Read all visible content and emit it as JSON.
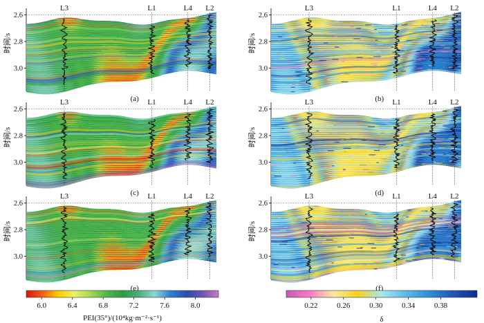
{
  "figure": {
    "panels": [
      {
        "id": "a",
        "label": "(a)",
        "colormap": "pei",
        "wells": [
          "L3",
          "L1",
          "L4",
          "L2"
        ]
      },
      {
        "id": "b",
        "label": "(b)",
        "colormap": "delta",
        "wells": [
          "L3",
          "L1",
          "L4",
          "L2"
        ]
      },
      {
        "id": "c",
        "label": "(c)",
        "colormap": "pei",
        "wells": [
          "L3",
          "L1",
          "L4",
          "L2"
        ]
      },
      {
        "id": "d",
        "label": "(d)",
        "colormap": "delta",
        "wells": [
          "L3",
          "L1",
          "L4",
          "L2"
        ]
      },
      {
        "id": "e",
        "label": "(e)",
        "colormap": "pei",
        "wells": [
          "L3",
          "L1",
          "L4",
          "L2"
        ]
      },
      {
        "id": "f",
        "label": "(f)",
        "colormap": "delta",
        "wells": [
          "L3",
          "L1",
          "L4",
          "L2"
        ]
      }
    ],
    "y_axis": {
      "label": "时间/s",
      "ticks": [
        "2.6",
        "2.8",
        "3.0"
      ]
    },
    "colorbar_left": {
      "ticks": [
        "6.0",
        "6.4",
        "6.8",
        "7.2",
        "7.6",
        "8.0"
      ],
      "title": "PEI(35°)/(10⁴kg·m⁻²·s⁻¹)",
      "colors": [
        "#e01010",
        "#f26018",
        "#ffcc00",
        "#e9f06a",
        "#a7d84c",
        "#4fb84c",
        "#2e9d42",
        "#48b07a",
        "#8ed8d2",
        "#2e7fd0",
        "#2a4fb0",
        "#6e55b6",
        "#c47cc8"
      ]
    },
    "colorbar_right": {
      "ticks": [
        "0.22",
        "0.26",
        "0.30",
        "0.34",
        "0.38"
      ],
      "title": "δ",
      "colors": [
        "#c45bb5",
        "#ff7ac8",
        "#f8eaa0",
        "#f4d21e",
        "#a8e8ee",
        "#5fb8ea",
        "#2b8fd8",
        "#1e58b8",
        "#112a8a"
      ]
    }
  },
  "chart_data": [
    {
      "type": "heatmap",
      "panel": "(a)",
      "title": "",
      "xlabel": "",
      "ylabel": "时间/s",
      "ylim": [
        3.15,
        2.6
      ],
      "yticks": [
        2.6,
        2.8,
        3.0
      ],
      "wells": [
        "L3",
        "L1",
        "L4",
        "L2"
      ],
      "colorbar_range": [
        5.8,
        8.3
      ],
      "colorbar_label": "PEI(35°)/(10⁴kg·m⁻²·s⁻¹)"
    },
    {
      "type": "heatmap",
      "panel": "(b)",
      "title": "",
      "xlabel": "",
      "ylabel": "时间/s",
      "ylim": [
        3.15,
        2.6
      ],
      "yticks": [
        2.6,
        2.8,
        3.0
      ],
      "wells": [
        "L3",
        "L1",
        "L4",
        "L2"
      ],
      "colorbar_range": [
        0.19,
        0.41
      ],
      "colorbar_label": "δ"
    },
    {
      "type": "heatmap",
      "panel": "(c)",
      "title": "",
      "xlabel": "",
      "ylabel": "时间/s",
      "ylim": [
        3.15,
        2.6
      ],
      "yticks": [
        2.6,
        2.8,
        3.0
      ],
      "wells": [
        "L3",
        "L1",
        "L4",
        "L2"
      ],
      "colorbar_range": [
        5.8,
        8.3
      ],
      "colorbar_label": "PEI(35°)/(10⁴kg·m⁻²·s⁻¹)"
    },
    {
      "type": "heatmap",
      "panel": "(d)",
      "title": "",
      "xlabel": "",
      "ylabel": "时间/s",
      "ylim": [
        3.15,
        2.6
      ],
      "yticks": [
        2.6,
        2.8,
        3.0
      ],
      "wells": [
        "L3",
        "L1",
        "L4",
        "L2"
      ],
      "colorbar_range": [
        0.19,
        0.41
      ],
      "colorbar_label": "δ"
    },
    {
      "type": "heatmap",
      "panel": "(e)",
      "title": "",
      "xlabel": "",
      "ylabel": "时间/s",
      "ylim": [
        3.15,
        2.6
      ],
      "yticks": [
        2.6,
        2.8,
        3.0
      ],
      "wells": [
        "L3",
        "L1",
        "L4",
        "L2"
      ],
      "colorbar_range": [
        5.8,
        8.3
      ],
      "colorbar_label": "PEI(35°)/(10⁴kg·m⁻²·s⁻¹)"
    },
    {
      "type": "heatmap",
      "panel": "(f)",
      "title": "",
      "xlabel": "",
      "ylabel": "时间/s",
      "ylim": [
        3.15,
        2.6
      ],
      "yticks": [
        2.6,
        2.8,
        3.0
      ],
      "wells": [
        "L3",
        "L1",
        "L4",
        "L2"
      ],
      "colorbar_range": [
        0.19,
        0.41
      ],
      "colorbar_label": "δ"
    }
  ]
}
